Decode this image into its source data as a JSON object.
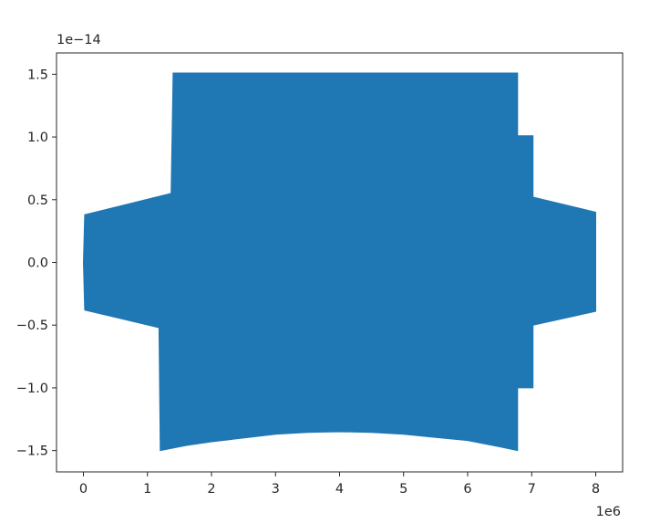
{
  "chart_data": {
    "type": "area",
    "title": "",
    "xlabel": "",
    "ylabel": "",
    "x_scale_label": "1e6",
    "y_scale_label": "1e−14",
    "xlim": [
      -0.42,
      8.42
    ],
    "ylim": [
      -1.67,
      1.67
    ],
    "x_ticks": [
      0,
      1,
      2,
      3,
      4,
      5,
      6,
      7,
      8
    ],
    "x_tick_labels": [
      "0",
      "1",
      "2",
      "3",
      "4",
      "5",
      "6",
      "7",
      "8"
    ],
    "y_ticks": [
      -1.5,
      -1.0,
      -0.5,
      0.0,
      0.5,
      1.0,
      1.5
    ],
    "y_tick_labels": [
      "−1.5",
      "−1.0",
      "−0.5",
      "0.0",
      "0.5",
      "1.0",
      "1.5"
    ],
    "grid": false,
    "color": "#1f77b4",
    "envelope_upper": {
      "x": [
        0,
        0.02,
        1.37,
        1.37,
        1.4,
        6.78,
        6.78,
        7.02,
        7.02,
        8.0
      ],
      "y": [
        0.0,
        0.38,
        0.55,
        0.55,
        1.51,
        1.51,
        1.01,
        1.01,
        0.52,
        0.4
      ]
    },
    "envelope_lower": {
      "x": [
        0,
        0.02,
        1.18,
        1.2,
        1.6,
        2.0,
        2.5,
        3.0,
        3.5,
        4.0,
        4.5,
        5.0,
        5.5,
        6.0,
        6.5,
        6.78,
        6.78,
        7.02,
        7.02,
        8.0
      ],
      "y": [
        0.0,
        -0.38,
        -0.52,
        -1.5,
        -1.46,
        -1.43,
        -1.4,
        -1.37,
        -1.355,
        -1.35,
        -1.355,
        -1.37,
        -1.395,
        -1.42,
        -1.47,
        -1.5,
        -1.0,
        -1.0,
        -0.5,
        -0.39
      ]
    }
  }
}
